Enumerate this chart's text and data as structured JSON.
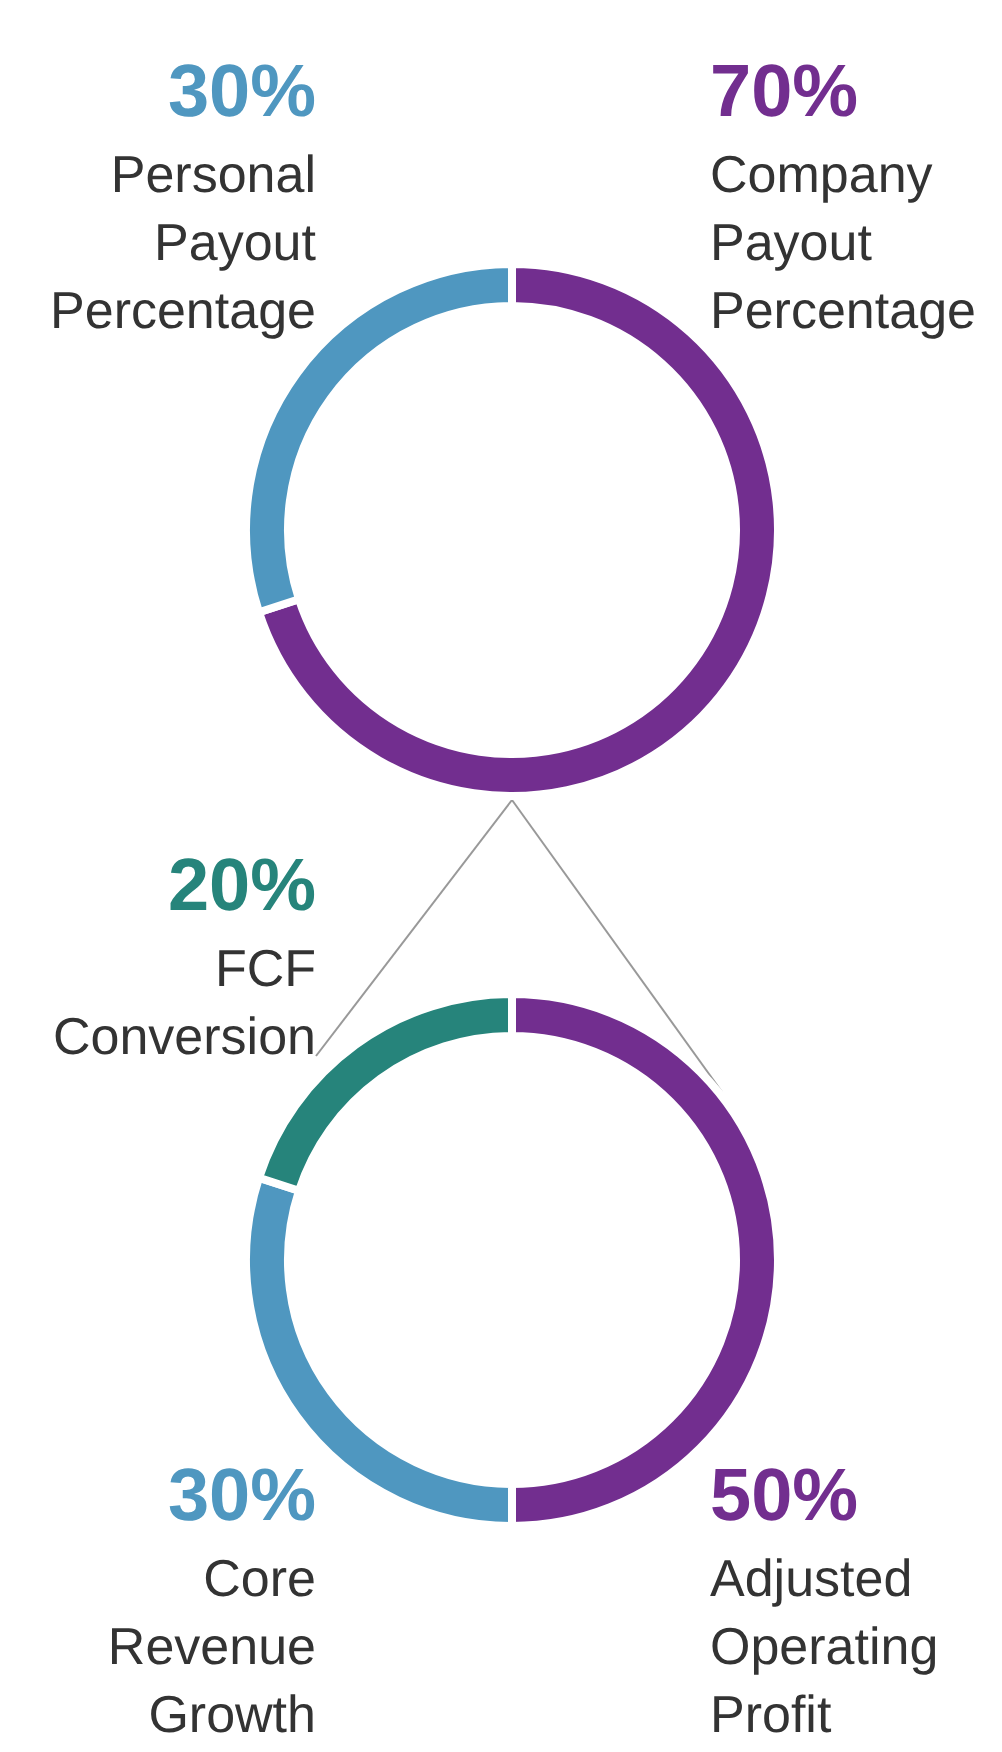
{
  "chart_data": [
    {
      "type": "donut",
      "categories": [
        "Company Payout Percentage",
        "Personal Payout Percentage"
      ],
      "values": [
        70,
        30
      ],
      "colors": [
        "#722e8f",
        "#4f97c0"
      ],
      "value_labels": [
        "70%",
        "30%"
      ]
    },
    {
      "type": "donut",
      "categories": [
        "Adjusted Operating Profit",
        "Core Revenue Growth",
        "FCF Conversion"
      ],
      "values": [
        50,
        30,
        20
      ],
      "colors": [
        "#722e8f",
        "#4f97c0",
        "#26847b"
      ],
      "value_labels": [
        "50%",
        "30%",
        "20%"
      ]
    }
  ]
}
